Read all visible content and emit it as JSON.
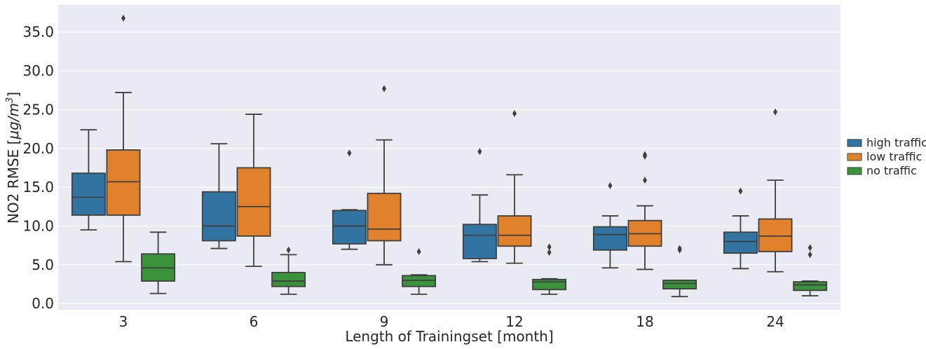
{
  "chart_data": {
    "type": "box",
    "title": "",
    "xlabel": "Length of Trainingset [month]",
    "ylabel_prefix": "NO2 RMSE [",
    "ylabel_unit": "μg/m",
    "ylabel_exp": "3",
    "ylabel_suffix": "]",
    "ylim": [
      -0.8,
      38.5
    ],
    "yticks": [
      0,
      5,
      10,
      15,
      20,
      25,
      30,
      35
    ],
    "ytick_labels": [
      "0.0",
      "5.0",
      "10.0",
      "15.0",
      "20.0",
      "25.0",
      "30.0",
      "35.0"
    ],
    "categories": [
      "3",
      "6",
      "9",
      "12",
      "18",
      "24"
    ],
    "grid": true,
    "legend_position": "right",
    "series": [
      {
        "name": "high traffic",
        "color": "#3274a1",
        "boxes": [
          {
            "whislo": 9.5,
            "q1": 11.4,
            "med": 13.7,
            "q3": 16.8,
            "whishi": 22.4,
            "fliers": []
          },
          {
            "whislo": 7.1,
            "q1": 8.1,
            "med": 10.0,
            "q3": 14.4,
            "whishi": 20.6,
            "fliers": []
          },
          {
            "whislo": 7.0,
            "q1": 7.7,
            "med": 10.0,
            "q3": 12.0,
            "whishi": 12.1,
            "fliers": [
              19.4
            ]
          },
          {
            "whislo": 5.4,
            "q1": 5.8,
            "med": 8.8,
            "q3": 10.2,
            "whishi": 14.0,
            "fliers": [
              19.6
            ]
          },
          {
            "whislo": 4.6,
            "q1": 6.9,
            "med": 8.9,
            "q3": 9.9,
            "whishi": 11.3,
            "fliers": [
              15.2
            ]
          },
          {
            "whislo": 4.5,
            "q1": 6.5,
            "med": 8.0,
            "q3": 9.2,
            "whishi": 11.3,
            "fliers": [
              14.5
            ]
          }
        ]
      },
      {
        "name": "low traffic",
        "color": "#e1812c",
        "boxes": [
          {
            "whislo": 5.4,
            "q1": 11.4,
            "med": 15.7,
            "q3": 19.8,
            "whishi": 27.2,
            "fliers": [
              36.8
            ]
          },
          {
            "whislo": 4.8,
            "q1": 8.7,
            "med": 12.5,
            "q3": 17.5,
            "whishi": 24.4,
            "fliers": []
          },
          {
            "whislo": 5.0,
            "q1": 8.1,
            "med": 9.6,
            "q3": 14.2,
            "whishi": 21.1,
            "fliers": [
              27.7
            ]
          },
          {
            "whislo": 5.2,
            "q1": 7.4,
            "med": 8.8,
            "q3": 11.3,
            "whishi": 16.6,
            "fliers": [
              24.5
            ]
          },
          {
            "whislo": 4.4,
            "q1": 7.4,
            "med": 9.0,
            "q3": 10.7,
            "whishi": 12.6,
            "fliers": [
              15.9,
              19.0,
              19.2
            ]
          },
          {
            "whislo": 4.1,
            "q1": 6.7,
            "med": 8.7,
            "q3": 10.9,
            "whishi": 15.9,
            "fliers": [
              24.7
            ]
          }
        ]
      },
      {
        "name": "no traffic",
        "color": "#3a923a",
        "boxes": [
          {
            "whislo": 1.3,
            "q1": 2.9,
            "med": 4.6,
            "q3": 6.4,
            "whishi": 9.2,
            "fliers": []
          },
          {
            "whislo": 1.2,
            "q1": 2.2,
            "med": 2.9,
            "q3": 4.0,
            "whishi": 6.3,
            "fliers": [
              6.9
            ]
          },
          {
            "whislo": 1.2,
            "q1": 2.2,
            "med": 3.0,
            "q3": 3.6,
            "whishi": 3.7,
            "fliers": [
              6.7
            ]
          },
          {
            "whislo": 1.2,
            "q1": 1.8,
            "med": 2.8,
            "q3": 3.1,
            "whishi": 3.2,
            "fliers": [
              6.6,
              7.3
            ]
          },
          {
            "whislo": 0.9,
            "q1": 1.9,
            "med": 2.6,
            "q3": 3.0,
            "whishi": 3.0,
            "fliers": [
              6.9,
              7.1
            ]
          },
          {
            "whislo": 1.0,
            "q1": 1.7,
            "med": 2.4,
            "q3": 2.8,
            "whishi": 2.9,
            "fliers": [
              6.3,
              7.2
            ]
          }
        ]
      }
    ]
  }
}
